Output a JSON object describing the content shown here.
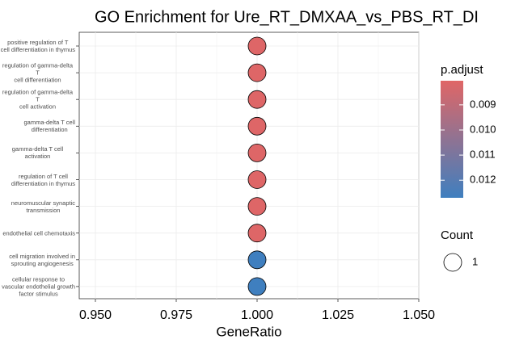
{
  "chart_data": {
    "type": "dot",
    "title": "GO Enrichment for Ure_RT_DMXAA_vs_PBS_RT_DI",
    "x_label": "GeneRatio",
    "categories": [
      "positive regulation of T\ncell differentiation in thymus",
      "regulation of gamma-delta T\ncell differentiation",
      "regulation of gamma-delta T\ncell activation",
      "gamma-delta T cell\ndifferentiation",
      "gamma-delta T cell activation",
      "regulation of T cell\ndifferentiation in thymus",
      "neuromuscular synaptic\ntransmission",
      "endothelial cell chemotaxis",
      "cell migration involved in\nsprouting angiogenesis",
      "cellular response to\nvascular endothelial growth\nfactor stimulus"
    ],
    "x": [
      1,
      1,
      1,
      1,
      1,
      1,
      1,
      1,
      1,
      1
    ],
    "p_adjust": [
      0.0081,
      0.0081,
      0.0081,
      0.0081,
      0.0081,
      0.0081,
      0.0081,
      0.0081,
      0.0127,
      0.0127
    ],
    "count": [
      1,
      1,
      1,
      1,
      1,
      1,
      1,
      1,
      1,
      1
    ],
    "xlim": [
      0.945,
      1.05
    ],
    "xticks": [
      {
        "value": 0.95,
        "label": "0.950"
      },
      {
        "value": 0.975,
        "label": "0.975"
      },
      {
        "value": 1,
        "label": "1.000"
      },
      {
        "value": 1.025,
        "label": "1.025"
      },
      {
        "value": 1.05,
        "label": "1.050"
      }
    ],
    "grid": true,
    "color_legend": {
      "title": "p.adjust",
      "lim": [
        0.00804,
        0.0127
      ],
      "colors": [
        "#e06666",
        "#3f7fbf"
      ],
      "ticks": [
        0.009,
        {
          "value": 0.01,
          "label": "0.010"
        },
        0.011,
        0.012
      ]
    },
    "size_legend": {
      "title": "Count",
      "values": [
        1
      ]
    }
  }
}
